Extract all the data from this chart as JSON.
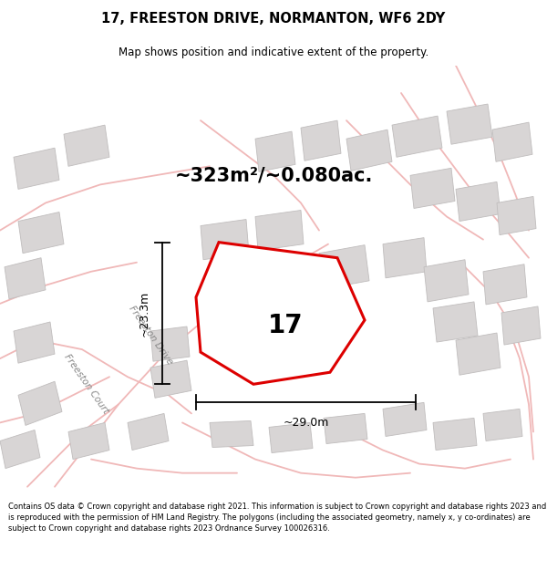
{
  "title": "17, FREESTON DRIVE, NORMANTON, WF6 2DY",
  "subtitle": "Map shows position and indicative extent of the property.",
  "area_text": "~323m²/~0.080ac.",
  "label_17": "17",
  "dim_width": "~29.0m",
  "dim_height": "~23.3m",
  "footer": "Contains OS data © Crown copyright and database right 2021. This information is subject to Crown copyright and database rights 2023 and is reproduced with the permission of HM Land Registry. The polygons (including the associated geometry, namely x, y co-ordinates) are subject to Crown copyright and database rights 2023 Ordnance Survey 100026316.",
  "map_bg": "#f2f0f0",
  "road_color": "#f0b8b8",
  "building_color": "#d8d5d5",
  "building_edge": "#c0bdbd",
  "plot_fill": "#ffffff",
  "plot_edge": "#dd0000",
  "street_label1": "Freeston Court",
  "street_label2": "Freeston Drive",
  "dim_line_color": "#000000",
  "label_color": "#888888"
}
